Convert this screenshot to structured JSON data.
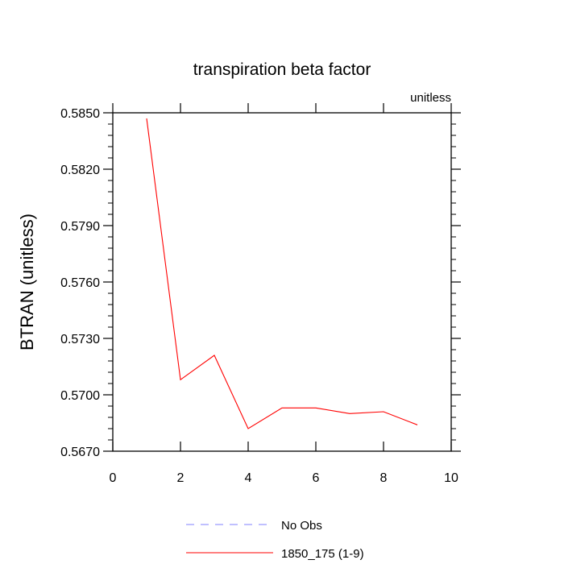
{
  "chart_data": {
    "type": "line",
    "title": "transpiration beta factor",
    "units_label": "unitless",
    "ylabel": "BTRAN  (unitless)",
    "xlim": [
      0,
      10
    ],
    "ylim": [
      0.567,
      0.585
    ],
    "x_ticks": [
      "0",
      "2",
      "4",
      "6",
      "8",
      "10"
    ],
    "y_ticks": [
      "0.5670",
      "0.5700",
      "0.5730",
      "0.5760",
      "0.5790",
      "0.5820",
      "0.5850"
    ],
    "grid": false,
    "series": [
      {
        "name": "1850_175 (1-9)",
        "color": "#ff0000",
        "x": [
          1,
          2,
          3,
          4,
          5,
          6,
          7,
          8,
          9
        ],
        "y": [
          0.5847,
          0.5708,
          0.5721,
          0.5682,
          0.5693,
          0.5693,
          0.569,
          0.5691,
          0.5684
        ]
      }
    ],
    "legend": [
      {
        "label": "No Obs",
        "color": "#8080ff",
        "style": "dashed"
      },
      {
        "label": "1850_175 (1-9)",
        "color": "#ff0000",
        "style": "solid"
      }
    ],
    "legend_position": "bottom"
  }
}
